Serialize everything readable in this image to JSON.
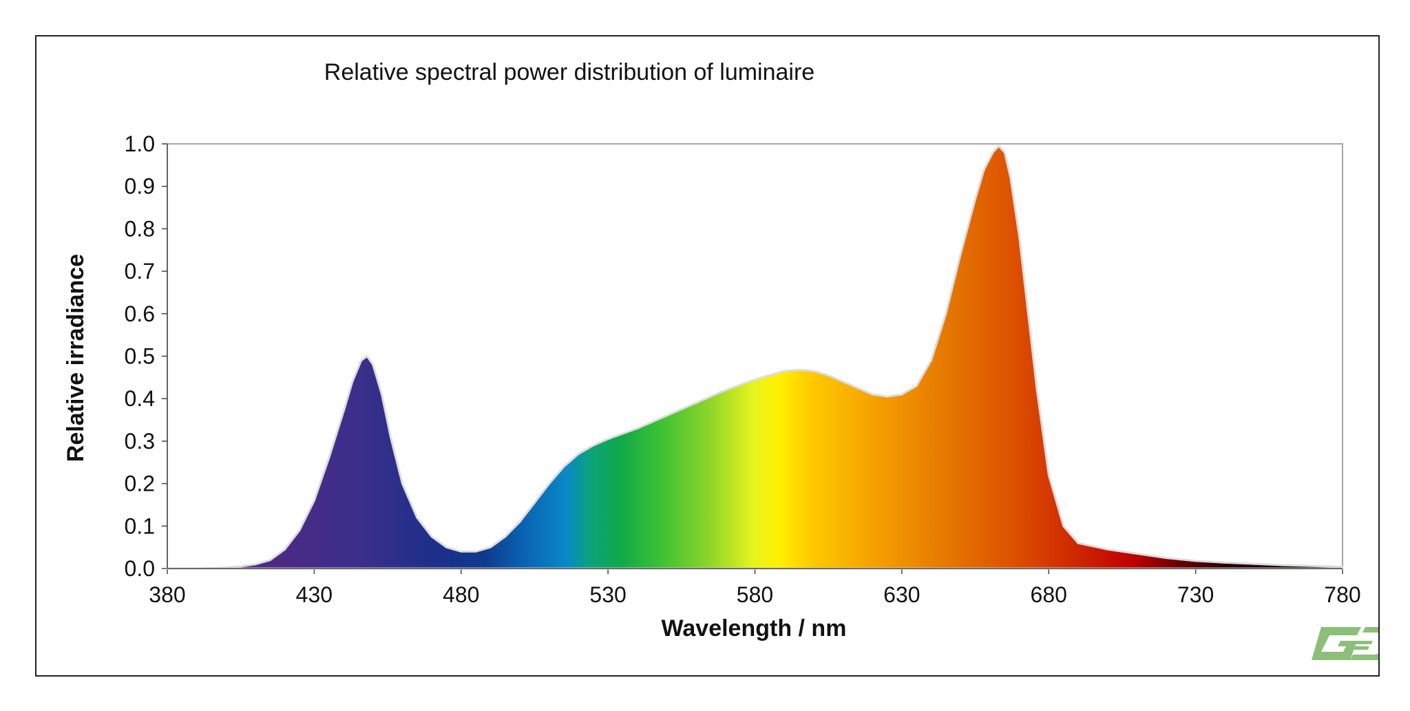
{
  "chart_data": {
    "type": "area",
    "title": "Relative spectral power distribution of luminaire",
    "xlabel": "Wavelength / nm",
    "ylabel": "Relative irradiance",
    "xlim": [
      380,
      780
    ],
    "ylim": [
      0,
      1.0
    ],
    "x_ticks": [
      "380",
      "430",
      "480",
      "530",
      "580",
      "630",
      "680",
      "730",
      "780"
    ],
    "y_ticks": [
      "0.0",
      "0.1",
      "0.2",
      "0.3",
      "0.4",
      "0.5",
      "0.6",
      "0.7",
      "0.8",
      "0.9",
      "1.0"
    ],
    "grid": false,
    "legend": "none",
    "fill": "spectral-gradient",
    "series": [
      {
        "x": [
          380,
          390,
          400,
          405,
          410,
          415,
          420,
          425,
          430,
          435,
          440,
          443,
          446,
          448,
          450,
          453,
          456,
          460,
          465,
          470,
          475,
          480,
          485,
          490,
          495,
          500,
          505,
          510,
          515,
          520,
          525,
          530,
          540,
          550,
          560,
          570,
          580,
          590,
          595,
          600,
          605,
          610,
          615,
          620,
          625,
          630,
          635,
          640,
          645,
          650,
          655,
          658,
          661,
          663,
          665,
          667,
          670,
          673,
          676,
          680,
          685,
          690,
          700,
          710,
          720,
          730,
          740,
          750,
          760,
          770,
          780
        ],
        "values": [
          0.0,
          0.0,
          0.002,
          0.005,
          0.01,
          0.02,
          0.045,
          0.09,
          0.16,
          0.26,
          0.37,
          0.44,
          0.49,
          0.5,
          0.48,
          0.41,
          0.31,
          0.2,
          0.12,
          0.075,
          0.05,
          0.04,
          0.04,
          0.05,
          0.075,
          0.11,
          0.155,
          0.2,
          0.24,
          0.27,
          0.29,
          0.305,
          0.33,
          0.36,
          0.39,
          0.42,
          0.445,
          0.465,
          0.468,
          0.465,
          0.455,
          0.44,
          0.425,
          0.41,
          0.405,
          0.41,
          0.43,
          0.49,
          0.6,
          0.74,
          0.87,
          0.94,
          0.98,
          0.995,
          0.98,
          0.92,
          0.78,
          0.6,
          0.42,
          0.22,
          0.1,
          0.06,
          0.045,
          0.035,
          0.025,
          0.018,
          0.014,
          0.011,
          0.008,
          0.006,
          0.004
        ]
      }
    ]
  },
  "logo": {
    "text": "GE",
    "color": "#8bbf7a"
  }
}
